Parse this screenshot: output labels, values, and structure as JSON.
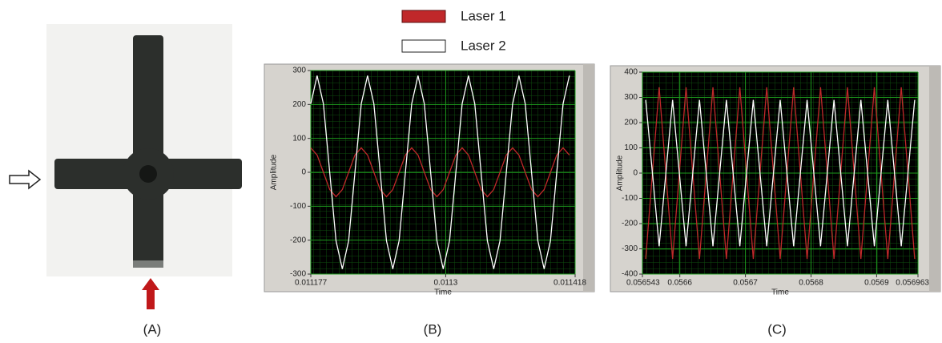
{
  "figure": {
    "panel_labels": [
      "(A)",
      "(B)",
      "(C)"
    ]
  },
  "chart_data": [
    {
      "type": "line",
      "xlabel": "Time",
      "ylabel": "Amplitude",
      "xlim": [
        0.011177,
        0.011418
      ],
      "ylim": [
        -300,
        300
      ],
      "xticks": [
        0.011177,
        0.0113,
        0.011418
      ],
      "yticks": [
        -300,
        -200,
        -100,
        0,
        100,
        200,
        300
      ],
      "grid": true,
      "x": [
        0.011177,
        0.01118275,
        0.0111885,
        0.01119425,
        0.0112,
        0.01120575,
        0.0112115,
        0.01121725,
        0.011223,
        0.01122875,
        0.0112345,
        0.01124025,
        0.011246,
        0.01125175,
        0.0112575,
        0.01126325,
        0.011269,
        0.01127475,
        0.0112805,
        0.01128625,
        0.011292,
        0.01129775,
        0.0113035,
        0.01130925,
        0.011315,
        0.01132075,
        0.0113265,
        0.01133225,
        0.011338,
        0.01134375,
        0.0113495,
        0.01135525,
        0.011361,
        0.01136675,
        0.0113725,
        0.01137825,
        0.011384,
        0.01138975,
        0.0113955,
        0.01140125,
        0.011407,
        0.01141275
      ],
      "series": [
        {
          "name": "Laser 1",
          "color": "#c0282a",
          "values": [
            72,
            51,
            0,
            -51,
            -72,
            -51,
            0,
            51,
            72,
            51,
            0,
            -51,
            -72,
            -51,
            0,
            51,
            72,
            51,
            0,
            -51,
            -72,
            -51,
            0,
            51,
            72,
            51,
            0,
            -51,
            -72,
            -51,
            0,
            51,
            72,
            51,
            0,
            -51,
            -72,
            -51,
            0,
            51,
            72,
            51
          ]
        },
        {
          "name": "Laser 2",
          "color": "#ffffff",
          "values": [
            202,
            285,
            202,
            0,
            -202,
            -285,
            -202,
            0,
            202,
            285,
            202,
            0,
            -202,
            -285,
            -202,
            0,
            202,
            285,
            202,
            0,
            -202,
            -285,
            -202,
            0,
            202,
            285,
            202,
            0,
            -202,
            -285,
            -202,
            0,
            202,
            285,
            202,
            0,
            -202,
            -285,
            -202,
            0,
            202,
            285
          ]
        }
      ]
    },
    {
      "type": "line",
      "xlabel": "Time",
      "ylabel": "Amplitude",
      "xlim": [
        0.056543,
        0.056963
      ],
      "ylim": [
        -400,
        400
      ],
      "xticks": [
        0.056543,
        0.0566,
        0.0567,
        0.0568,
        0.0569,
        0.056963
      ],
      "yticks": [
        -400,
        -300,
        -200,
        -100,
        0,
        100,
        200,
        300,
        400
      ],
      "grid": true,
      "x": [
        0.056548,
        0.05655825,
        0.0565685,
        0.05657875,
        0.056589,
        0.05659925,
        0.0566095,
        0.05661975,
        0.05663,
        0.05664025,
        0.0566505,
        0.05666075,
        0.056671,
        0.05668125,
        0.0566915,
        0.05670175,
        0.056712,
        0.05672225,
        0.0567325,
        0.05674275,
        0.056753,
        0.05676325,
        0.0567735,
        0.05678375,
        0.056794,
        0.05680425,
        0.0568145,
        0.05682475,
        0.056835,
        0.05684525,
        0.0568555,
        0.05686575,
        0.056876,
        0.05688625,
        0.0568965,
        0.05690675,
        0.056917,
        0.05692725,
        0.0569375,
        0.05694775,
        0.056958
      ],
      "series": [
        {
          "color": "#c0282a",
          "values": [
            -340,
            0,
            340,
            0,
            -340,
            0,
            340,
            0,
            -340,
            0,
            340,
            0,
            -340,
            0,
            340,
            0,
            -340,
            0,
            340,
            0,
            -340,
            0,
            340,
            0,
            -340,
            0,
            340,
            0,
            -340,
            0,
            340,
            0,
            -340,
            0,
            340,
            0,
            -340,
            0,
            340,
            0,
            -340
          ]
        },
        {
          "color": "#ffffff",
          "values": [
            290,
            0,
            -290,
            0,
            290,
            0,
            -290,
            0,
            290,
            0,
            -290,
            0,
            290,
            0,
            -290,
            0,
            290,
            0,
            -290,
            0,
            290,
            0,
            -290,
            0,
            290,
            0,
            -290,
            0,
            290,
            0,
            -290,
            0,
            290,
            0,
            -290,
            0,
            290,
            0,
            -290,
            0,
            290
          ]
        }
      ]
    }
  ]
}
